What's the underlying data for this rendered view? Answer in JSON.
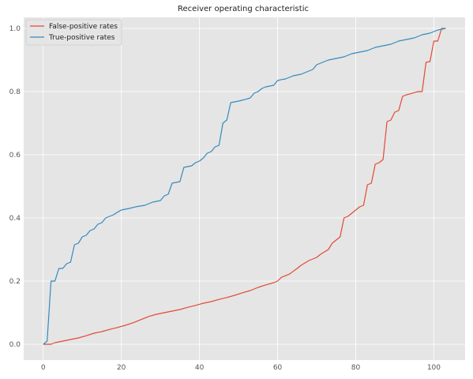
{
  "chart_data": {
    "type": "line",
    "title": "Receiver operating characteristic",
    "xlabel": "",
    "ylabel": "",
    "xlim": [
      -5,
      108
    ],
    "ylim": [
      -0.05,
      1.035
    ],
    "xticks": [
      0,
      20,
      40,
      60,
      80,
      100
    ],
    "yticks": [
      0.0,
      0.2,
      0.4,
      0.6,
      0.8,
      1.0
    ],
    "xtick_labels": [
      "0",
      "20",
      "40",
      "60",
      "80",
      "100"
    ],
    "ytick_labels": [
      "0.0",
      "0.2",
      "0.4",
      "0.6",
      "0.8",
      "1.0"
    ],
    "grid": true,
    "legend_position": "top-left",
    "series": [
      {
        "name": "False-positive rates",
        "color": "#E24A33",
        "x": [
          0,
          2,
          3,
          5,
          7,
          9,
          11,
          13,
          15,
          17,
          19,
          21,
          23,
          25,
          27,
          29,
          31,
          33,
          35,
          37,
          39,
          41,
          43,
          45,
          47,
          49,
          51,
          53,
          55,
          57,
          59,
          60,
          61,
          63,
          65,
          66,
          68,
          70,
          71,
          73,
          74,
          75,
          76,
          77,
          78,
          79,
          81,
          82,
          83,
          84,
          85,
          86,
          87,
          88,
          89,
          90,
          91,
          92,
          93,
          94,
          95,
          96,
          97,
          98,
          99,
          100,
          101,
          102,
          103
        ],
        "y": [
          0.0,
          0.0,
          0.005,
          0.01,
          0.015,
          0.02,
          0.027,
          0.035,
          0.04,
          0.047,
          0.053,
          0.06,
          0.068,
          0.078,
          0.088,
          0.095,
          0.1,
          0.105,
          0.11,
          0.117,
          0.123,
          0.13,
          0.135,
          0.142,
          0.148,
          0.155,
          0.163,
          0.17,
          0.18,
          0.188,
          0.195,
          0.2,
          0.212,
          0.222,
          0.24,
          0.25,
          0.265,
          0.275,
          0.285,
          0.3,
          0.32,
          0.33,
          0.34,
          0.4,
          0.405,
          0.415,
          0.435,
          0.44,
          0.505,
          0.51,
          0.57,
          0.575,
          0.585,
          0.705,
          0.71,
          0.735,
          0.74,
          0.785,
          0.79,
          0.793,
          0.797,
          0.8,
          0.8,
          0.893,
          0.895,
          0.96,
          0.96,
          1.0,
          1.0
        ]
      },
      {
        "name": "True-positive rates",
        "color": "#348ABD",
        "x": [
          0,
          1,
          2,
          3,
          4,
          5,
          6,
          7,
          8,
          9,
          10,
          11,
          12,
          13,
          14,
          15,
          16,
          17,
          18,
          19,
          20,
          22,
          24,
          26,
          28,
          30,
          31,
          32,
          33,
          35,
          36,
          38,
          39,
          40,
          41,
          42,
          43,
          44,
          45,
          46,
          47,
          48,
          50,
          52,
          53,
          54,
          55,
          56,
          57,
          59,
          60,
          61,
          62,
          64,
          66,
          68,
          69,
          70,
          71,
          73,
          75,
          77,
          79,
          81,
          83,
          85,
          87,
          89,
          91,
          93,
          95,
          97,
          99,
          101,
          103
        ],
        "y": [
          0.0,
          0.01,
          0.2,
          0.2,
          0.24,
          0.24,
          0.255,
          0.26,
          0.315,
          0.32,
          0.34,
          0.345,
          0.36,
          0.365,
          0.38,
          0.385,
          0.4,
          0.405,
          0.41,
          0.418,
          0.425,
          0.43,
          0.436,
          0.44,
          0.45,
          0.455,
          0.47,
          0.475,
          0.51,
          0.515,
          0.56,
          0.565,
          0.575,
          0.58,
          0.59,
          0.605,
          0.61,
          0.625,
          0.63,
          0.7,
          0.71,
          0.765,
          0.77,
          0.776,
          0.78,
          0.795,
          0.8,
          0.81,
          0.815,
          0.82,
          0.835,
          0.838,
          0.84,
          0.85,
          0.855,
          0.865,
          0.87,
          0.885,
          0.89,
          0.9,
          0.905,
          0.91,
          0.92,
          0.925,
          0.93,
          0.94,
          0.945,
          0.95,
          0.96,
          0.965,
          0.97,
          0.98,
          0.985,
          0.995,
          1.0
        ]
      }
    ]
  },
  "colors": {
    "plot_background": "#E5E5E5",
    "grid": "#FFFFFF"
  }
}
